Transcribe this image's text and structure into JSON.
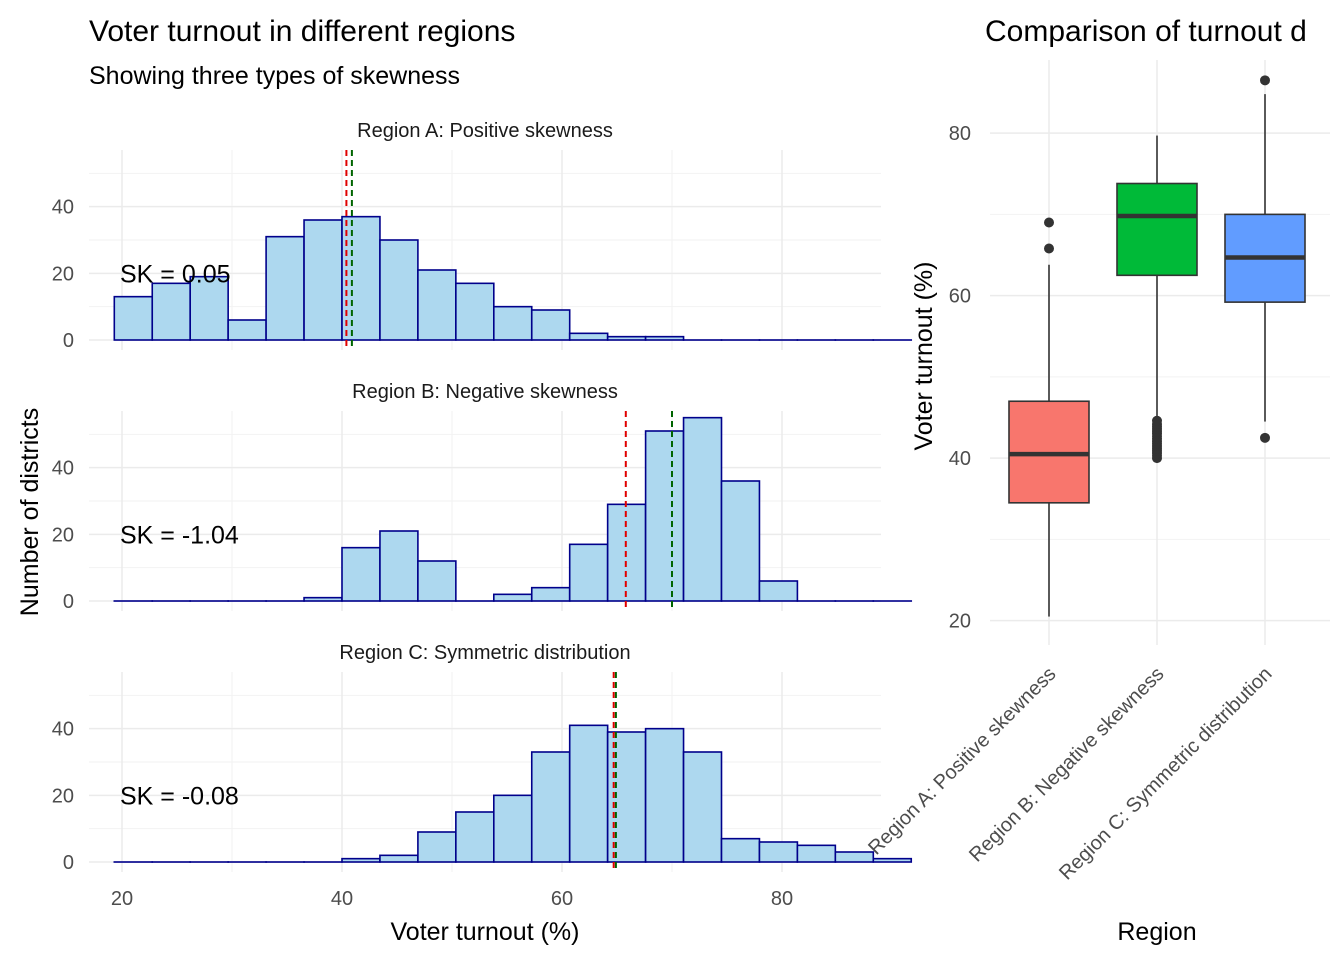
{
  "chart_data": [
    {
      "type": "bar",
      "title": "Voter turnout in different regions",
      "subtitle": "Showing three types of skewness",
      "xlabel": "Voter turnout (%)",
      "ylabel": "Number of districts",
      "xlim": [
        17,
        89
      ],
      "ylim": [
        -3,
        57
      ],
      "x_ticks": [
        20,
        40,
        60,
        80
      ],
      "y_ticks": [
        0,
        20,
        40
      ],
      "bin_start": 19.3,
      "bin_width": 3.45,
      "grid": true,
      "fill_color": "#add8ef",
      "edge_color": "#00008b",
      "mean_line_color": "#e00000",
      "median_line_color": "#006400",
      "panels": [
        {
          "strip_label": "Region A: Positive skewness",
          "sk_label": "SK = 0.05",
          "counts": [
            13,
            17,
            19,
            6,
            31,
            36,
            37,
            30,
            21,
            17,
            10,
            9,
            2,
            1,
            1,
            0,
            0,
            0,
            0,
            0,
            0
          ],
          "mean": 40.4,
          "median": 40.9
        },
        {
          "strip_label": "Region B: Negative skewness",
          "sk_label": "SK = -1.04",
          "counts": [
            0,
            0,
            0,
            0,
            0,
            1,
            16,
            21,
            12,
            0,
            2,
            4,
            17,
            29,
            51,
            55,
            36,
            6,
            0,
            0,
            0
          ],
          "mean": 65.8,
          "median": 70.0
        },
        {
          "strip_label": "Region C: Symmetric distribution",
          "sk_label": "SK = -0.08",
          "counts": [
            0,
            0,
            0,
            0,
            0,
            0,
            1,
            2,
            9,
            15,
            20,
            33,
            41,
            39,
            40,
            33,
            7,
            6,
            5,
            3,
            1
          ],
          "mean": 64.7,
          "median": 64.9
        }
      ]
    },
    {
      "type": "boxplot",
      "title": "Comparison of turnout d",
      "xlabel": "Region",
      "ylabel": "Voter turnout (%)",
      "ylim": [
        17,
        89
      ],
      "y_ticks": [
        20,
        40,
        60,
        80
      ],
      "grid": true,
      "categories": [
        "Region A: Positive skewness",
        "Region B: Negative skewness",
        "Region C: Symmetric distribution"
      ],
      "boxes": [
        {
          "name": "Region A: Positive skewness",
          "color": "#f8766d",
          "whisker_low": 20.5,
          "q1": 34.5,
          "median": 40.5,
          "q3": 47.0,
          "whisker_high": 63.8,
          "outliers": [
            65.8,
            69.0
          ]
        },
        {
          "name": "Region B: Negative skewness",
          "color": "#00ba38",
          "whisker_low": 45.0,
          "q1": 62.5,
          "median": 69.8,
          "q3": 73.8,
          "whisker_high": 79.7,
          "outliers": [
            40.0,
            40.3,
            40.6,
            40.9,
            41.2,
            41.5,
            41.8,
            42.1,
            42.4,
            42.7,
            43.0,
            43.3,
            43.6,
            43.9,
            44.2,
            44.6
          ]
        },
        {
          "name": "Region C: Symmetric distribution",
          "color": "#619cff",
          "whisker_low": 44.5,
          "q1": 59.2,
          "median": 64.7,
          "q3": 70.0,
          "whisker_high": 84.8,
          "outliers": [
            42.5,
            86.5
          ]
        }
      ]
    }
  ]
}
